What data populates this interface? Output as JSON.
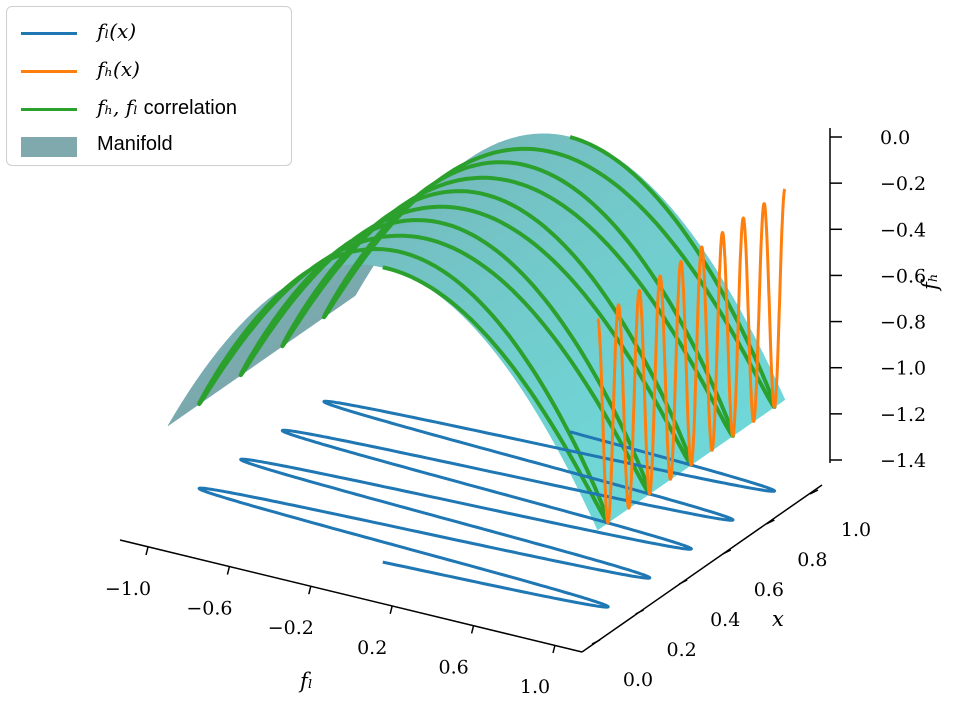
{
  "chart_data": {
    "type": "surface3d",
    "legend": {
      "placement": "top-left",
      "items": [
        {
          "label": "f_l(x)",
          "display": "fₗ(x)",
          "color": "#1f77b4",
          "kind": "line"
        },
        {
          "label": "f_h(x)",
          "display": "fₕ(x)",
          "color": "#ff7f0e",
          "kind": "line"
        },
        {
          "label": "f_h, f_l correlation",
          "display_math": "fₕ, fₗ",
          "display_text": " correlation",
          "color": "#2ca02c",
          "kind": "line"
        },
        {
          "label": "Manifold",
          "display": "Manifold",
          "color": "#7fa9ad",
          "kind": "patch"
        }
      ]
    },
    "axes": {
      "x_label": "fₗ",
      "y_label": "x",
      "z_label": "fₕ",
      "x_ticks": [
        "−1.0",
        "−0.6",
        "−0.2",
        "0.2",
        "0.6",
        "1.0"
      ],
      "y_ticks": [
        "0.0",
        "0.2",
        "0.4",
        "0.6",
        "0.8",
        "1.0"
      ],
      "z_ticks": [
        "0.0",
        "−0.2",
        "−0.4",
        "−0.6",
        "−0.8",
        "−1.0",
        "−1.2",
        "−1.4"
      ],
      "x_range": [
        -1.0,
        1.0
      ],
      "y_range": [
        0.0,
        1.0
      ],
      "z_range": [
        -1.4,
        0.0
      ]
    },
    "series": [
      {
        "name": "f_l(x)",
        "function": "f_l(x) = sin(2π·4.5·x)",
        "x_range": [
          0,
          1
        ],
        "color": "#1f77b4"
      },
      {
        "name": "f_h(x)",
        "function": "f_h(x) = −f_l(x)²",
        "x_range": [
          0,
          1
        ],
        "color": "#ff7f0e"
      },
      {
        "name": "f_h, f_l correlation",
        "function": "f_h = −f_l²",
        "f_l_range": [
          -1,
          1
        ],
        "color": "#2ca02c"
      },
      {
        "name": "Manifold",
        "function": "f_h = −f_l²",
        "f_l_range": [
          -1,
          1
        ],
        "x_range": [
          0,
          1
        ],
        "colors": [
          "#7fa9ad",
          "#74d6d6"
        ]
      }
    ]
  }
}
